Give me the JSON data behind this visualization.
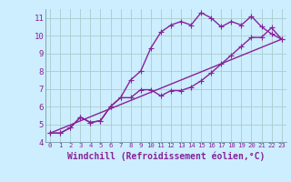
{
  "background_color": "#cceeff",
  "grid_color": "#aacccc",
  "line_color": "#882299",
  "marker": "P",
  "marker_size": 2.5,
  "line_width": 1.0,
  "xlabel": "Windchill (Refroidissement éolien,°C)",
  "xlabel_fontsize": 7,
  "xlim": [
    -0.5,
    23.5
  ],
  "ylim": [
    4,
    11.5
  ],
  "yticks": [
    4,
    5,
    6,
    7,
    8,
    9,
    10,
    11
  ],
  "xticks": [
    0,
    1,
    2,
    3,
    4,
    5,
    6,
    7,
    8,
    9,
    10,
    11,
    12,
    13,
    14,
    15,
    16,
    17,
    18,
    19,
    20,
    21,
    22,
    23
  ],
  "line1_x": [
    0,
    1,
    2,
    3,
    4,
    5,
    6,
    7,
    8,
    9,
    10,
    11,
    12,
    13,
    14,
    15,
    16,
    17,
    18,
    19,
    20,
    21,
    22,
    23
  ],
  "line1_y": [
    4.5,
    4.5,
    4.8,
    5.4,
    5.1,
    5.2,
    6.0,
    6.5,
    7.5,
    8.0,
    9.3,
    10.2,
    10.6,
    10.8,
    10.6,
    11.3,
    11.0,
    10.5,
    10.8,
    10.6,
    11.1,
    10.5,
    10.1,
    9.8
  ],
  "line2_x": [
    0,
    1,
    2,
    3,
    4,
    5,
    6,
    7,
    8,
    9,
    10,
    11,
    12,
    13,
    14,
    15,
    16,
    17,
    18,
    19,
    20,
    21,
    22,
    23
  ],
  "line2_y": [
    4.5,
    4.5,
    4.8,
    5.4,
    5.1,
    5.2,
    6.0,
    6.5,
    6.5,
    6.95,
    6.95,
    6.6,
    6.9,
    6.9,
    7.1,
    7.45,
    7.9,
    8.4,
    8.9,
    9.4,
    9.9,
    9.9,
    10.45,
    9.8
  ],
  "line3_x": [
    0,
    23
  ],
  "line3_y": [
    4.5,
    9.8
  ]
}
